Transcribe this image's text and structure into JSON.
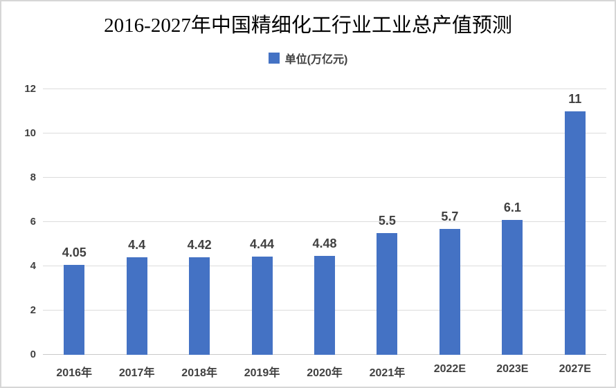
{
  "chart": {
    "title": "2016-2027年中国精细化工行业工业总产值预测",
    "legend_label": "单位(万亿元)",
    "colors": {
      "bar": "#4472c4",
      "gridline": "#dcdcdc",
      "axis_text": "#404040",
      "data_label_text": "#404040",
      "title_text": "#000000"
    }
  },
  "chart_data": {
    "type": "bar",
    "title": "2016-2027年中国精细化工行业工业总产值预测",
    "legend": [
      "单位(万亿元)"
    ],
    "legend_position": "top",
    "categories": [
      "2016年",
      "2017年",
      "2018年",
      "2019年",
      "2020年",
      "2021年",
      "2022E",
      "2023E",
      "2027E"
    ],
    "values": [
      4.05,
      4.4,
      4.42,
      4.44,
      4.48,
      5.5,
      5.7,
      6.1,
      11
    ],
    "data_labels": [
      "4.05",
      "4.4",
      "4.42",
      "4.44",
      "4.48",
      "5.5",
      "5.7",
      "6.1",
      "11"
    ],
    "xlabel": "",
    "ylabel": "",
    "ylim": [
      0,
      12
    ],
    "yticks": [
      0,
      2,
      4,
      6,
      8,
      10,
      12
    ],
    "grid": true
  }
}
